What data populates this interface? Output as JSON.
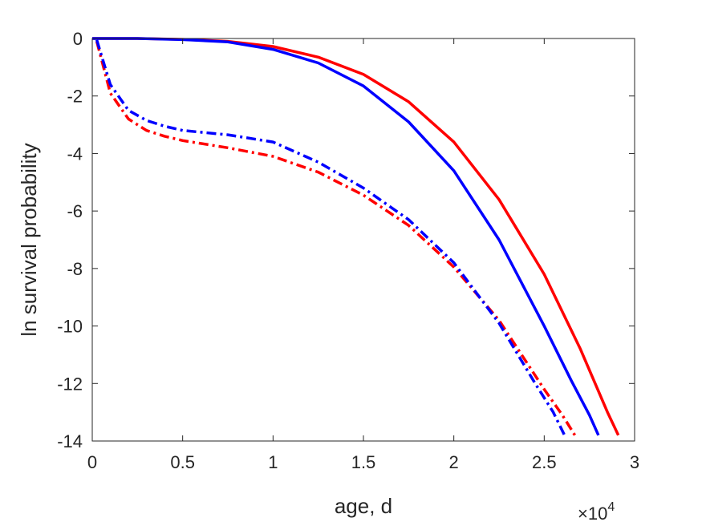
{
  "chart_data": {
    "type": "line",
    "xlabel": "age, d",
    "ylabel": "ln survival probability",
    "x_multiplier": {
      "base": "×10",
      "exponent": "4"
    },
    "xlim": [
      0,
      30000
    ],
    "ylim": [
      -14,
      0
    ],
    "xticks": [
      0,
      5000,
      10000,
      15000,
      20000,
      25000,
      30000
    ],
    "xtick_labels": [
      "0",
      "0.5",
      "1",
      "1.5",
      "2",
      "2.5",
      "3"
    ],
    "yticks": [
      0,
      -2,
      -4,
      -6,
      -8,
      -10,
      -12,
      -14
    ],
    "ytick_labels": [
      "0",
      "-2",
      "-4",
      "-6",
      "-8",
      "-10",
      "-12",
      "-14"
    ],
    "grid": false,
    "series": [
      {
        "color": "#ff0000",
        "style": "solid",
        "x": [
          0,
          2500,
          5000,
          7500,
          10000,
          12500,
          15000,
          17500,
          20000,
          22500,
          25000,
          27000,
          28500,
          29100
        ],
        "y": [
          0,
          0,
          -0.03,
          -0.1,
          -0.28,
          -0.65,
          -1.25,
          -2.2,
          -3.6,
          -5.6,
          -8.2,
          -10.8,
          -13.0,
          -13.8
        ]
      },
      {
        "color": "#0000ff",
        "style": "solid",
        "x": [
          0,
          2500,
          5000,
          7500,
          10000,
          12500,
          15000,
          17500,
          20000,
          22500,
          25000,
          26500,
          27500,
          28000
        ],
        "y": [
          0,
          0,
          -0.04,
          -0.12,
          -0.38,
          -0.85,
          -1.65,
          -2.9,
          -4.6,
          -7.0,
          -10.0,
          -11.9,
          -13.1,
          -13.8
        ]
      },
      {
        "color": "#ff0000",
        "style": "dashdot",
        "x": [
          250,
          1000,
          2000,
          3000,
          4000,
          5000,
          7500,
          10000,
          12500,
          15000,
          17500,
          20000,
          22500,
          25000,
          26000,
          26700
        ],
        "y": [
          -0.1,
          -1.9,
          -2.8,
          -3.2,
          -3.4,
          -3.55,
          -3.8,
          -4.1,
          -4.65,
          -5.45,
          -6.5,
          -7.95,
          -9.8,
          -12.2,
          -13.1,
          -13.8
        ]
      },
      {
        "color": "#0000ff",
        "style": "dashdot",
        "x": [
          250,
          1000,
          2000,
          3000,
          4000,
          5000,
          7500,
          10000,
          12500,
          15000,
          17500,
          20000,
          22500,
          24500,
          25500,
          26200
        ],
        "y": [
          -0.05,
          -1.6,
          -2.5,
          -2.85,
          -3.05,
          -3.2,
          -3.35,
          -3.6,
          -4.3,
          -5.2,
          -6.3,
          -7.8,
          -9.9,
          -12.0,
          -13.0,
          -13.9
        ]
      }
    ]
  }
}
